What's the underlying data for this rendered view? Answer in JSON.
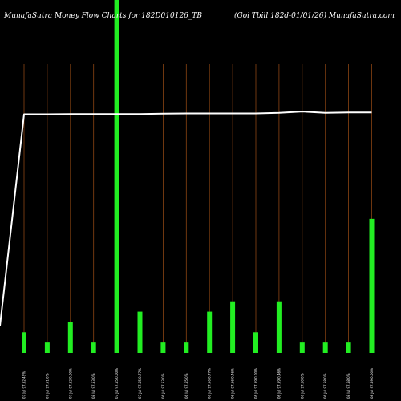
{
  "header": {
    "left": "MunafaSutra  Money Flow  Charts for 182D010126_TB",
    "right": "(Goi   Tbill 182d-01/01/26) MunafaSutra.com"
  },
  "colors": {
    "background": "#000000",
    "bar": "#22ee22",
    "gridline": "#8b4513",
    "line": "#ffffff",
    "text": "#ffffff"
  },
  "chart_data": {
    "type": "bar",
    "categories": [
      "07 Jul 97.52 49%",
      "07 Jul 97.51 0%",
      "07 Jul 97.52 0.00%",
      "08 Jul 97.53 0%",
      "07 Jul 97.55 0.00%",
      "07 Jul 97.55 0.77%",
      "06 Jul 97.53 0%",
      "06 Jul 97.55 0%",
      "06 Jul 97.56 0.77%",
      "06 Jul 97.56 0.46%",
      "08 Jul 97.59 0.00%",
      "06 Jul 97.59 0.46%",
      "06 Jul 97.60 0%",
      "06 Jul 97.58 0%",
      "08 Jul 97.58 0%",
      "08 Jul 97.59 0.00%"
    ],
    "series": [
      {
        "type": "bar",
        "values": [
          2,
          1,
          3,
          1,
          100,
          4,
          1,
          1,
          4,
          5,
          2,
          5,
          1,
          1,
          1,
          13
        ]
      },
      {
        "type": "line",
        "values": [
          97.5,
          97.5,
          97.52,
          97.52,
          97.52,
          97.52,
          97.55,
          97.56,
          97.56,
          97.56,
          97.56,
          97.6,
          97.7,
          97.6,
          97.63,
          97.63
        ]
      }
    ],
    "line_start": 82,
    "bar_ylim": [
      0,
      28
    ],
    "line_ylim": [
      80,
      100
    ],
    "grid": true,
    "legend": "none"
  }
}
